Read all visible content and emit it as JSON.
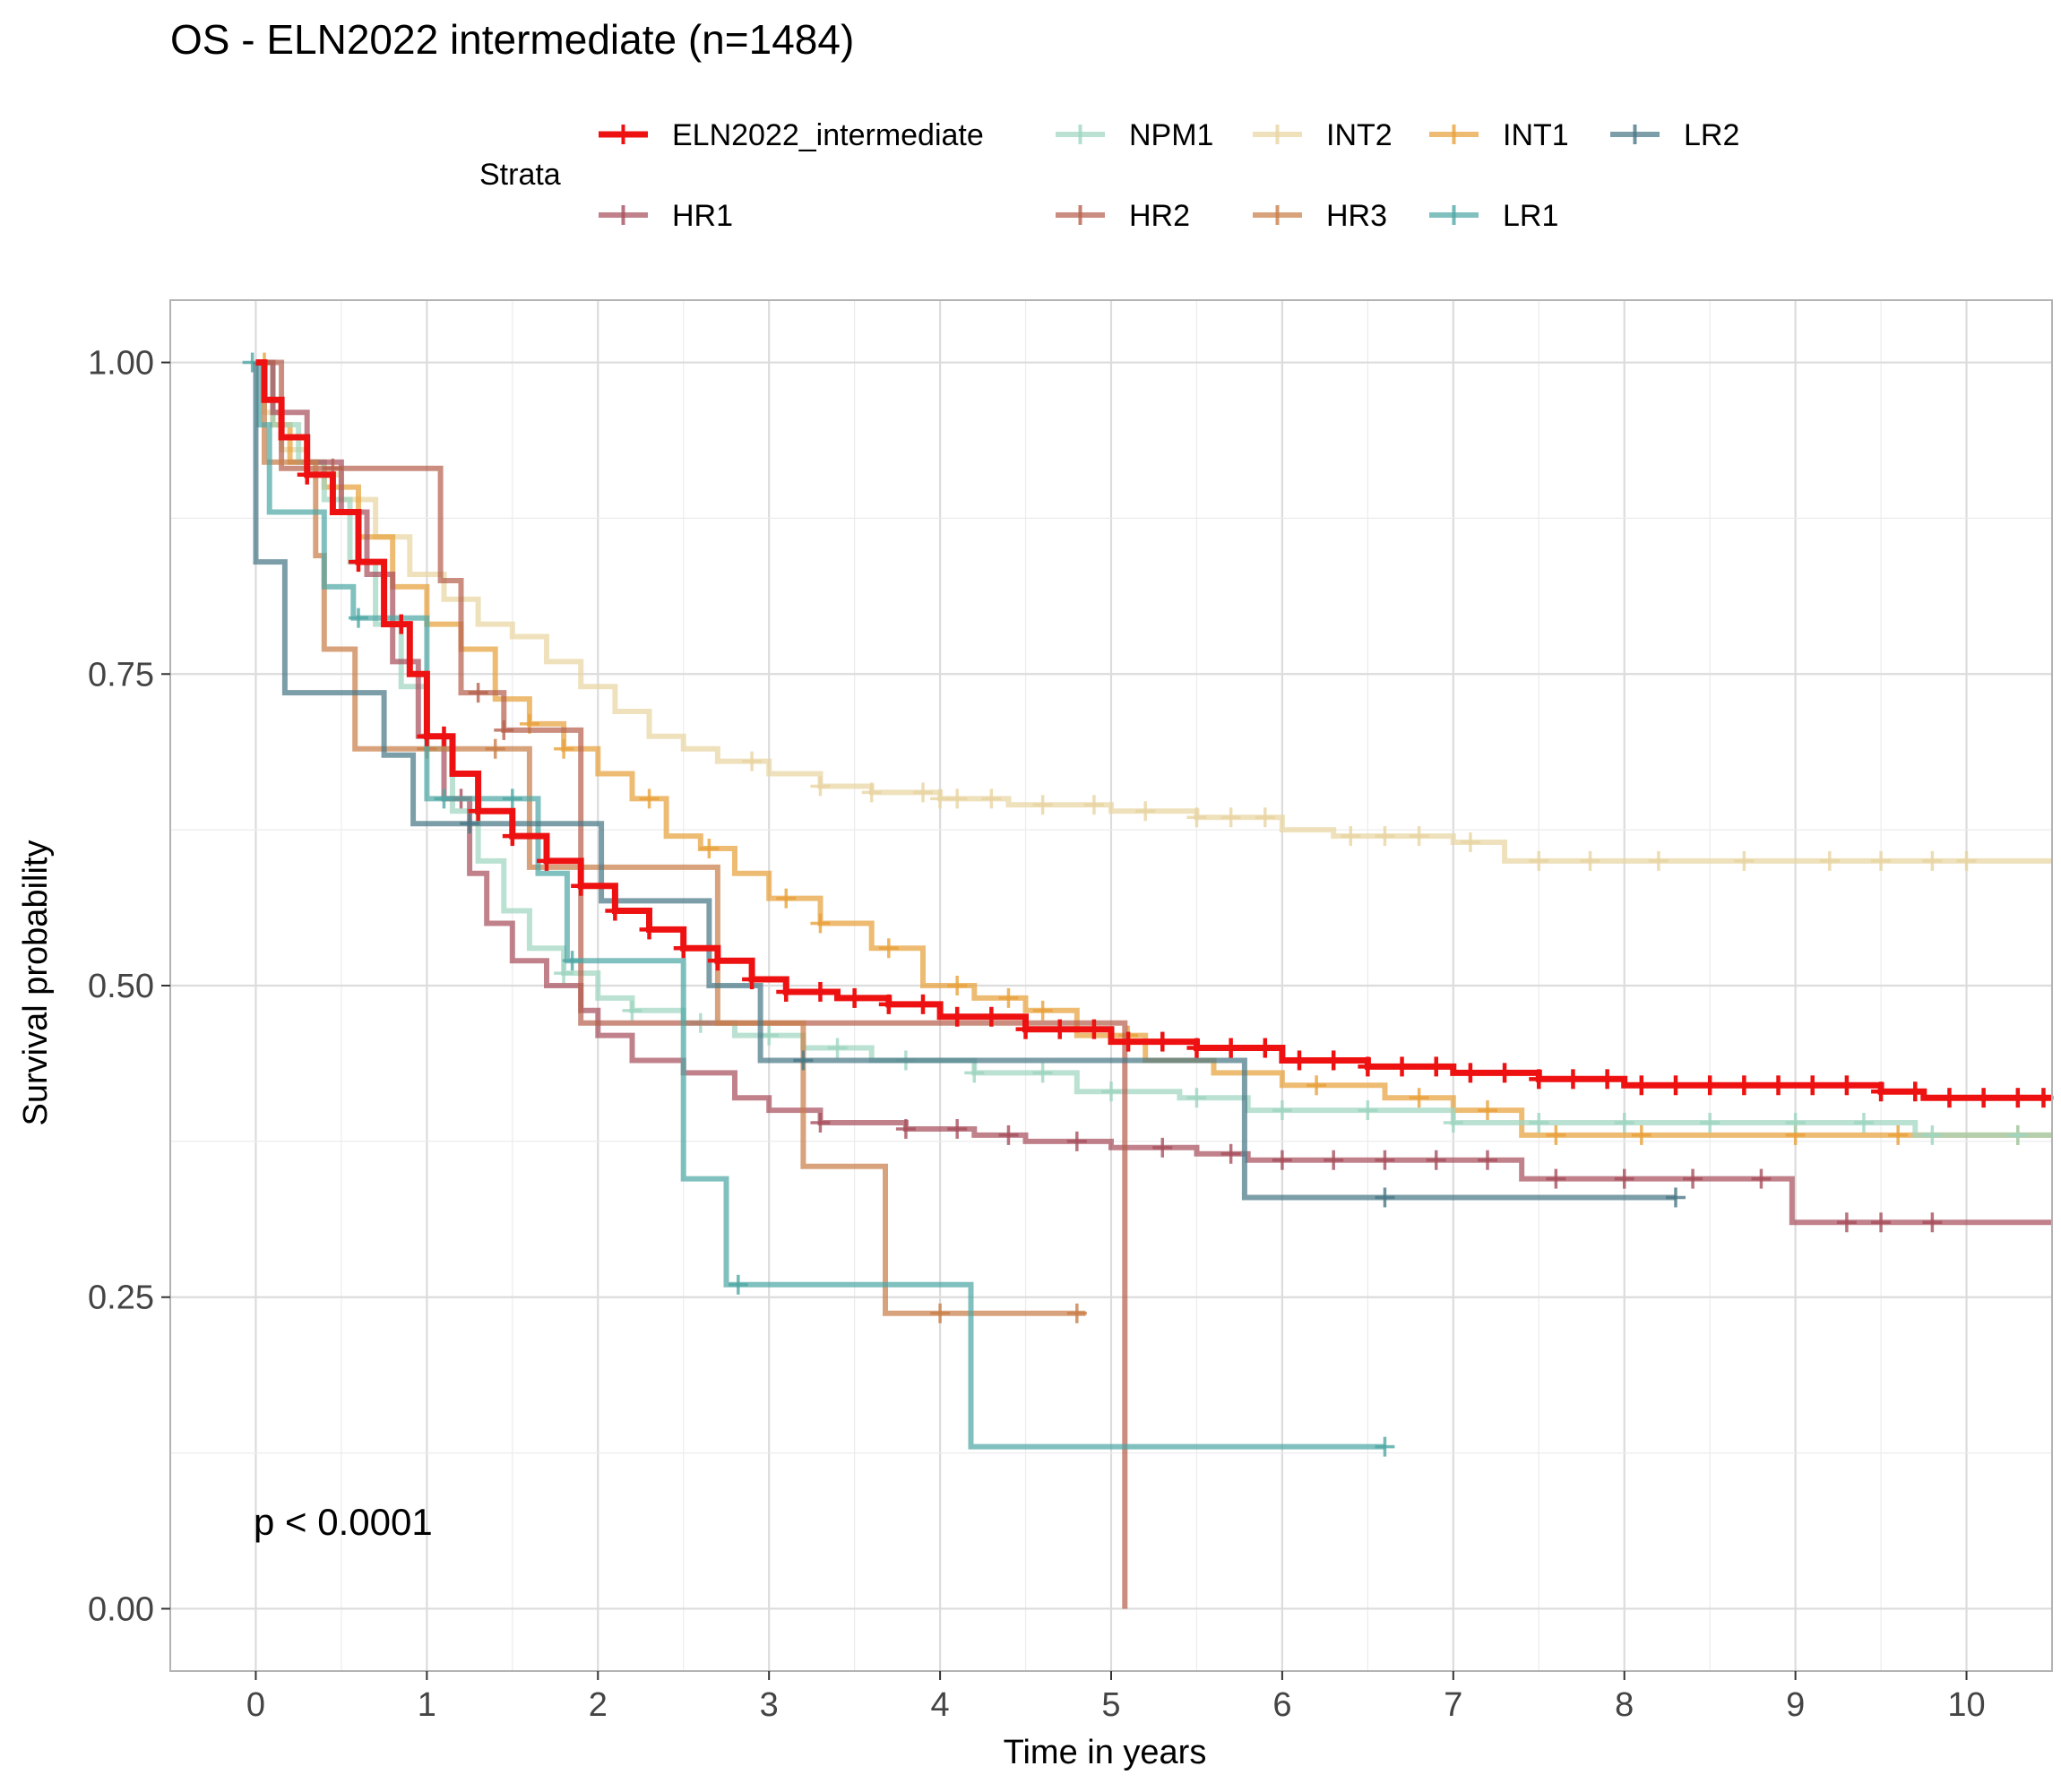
{
  "chart_data": {
    "type": "line",
    "subtype": "kaplan-meier step survival curves with censor marks",
    "title": "OS - ELN2022 intermediate (n=1484)",
    "xlabel": "Time in years",
    "ylabel": "Survival probability",
    "xlim": [
      -0.5,
      10.5
    ],
    "ylim": [
      -0.05,
      1.05
    ],
    "x_ticks": [
      0,
      1,
      2,
      3,
      4,
      5,
      6,
      7,
      8,
      9,
      10
    ],
    "x_tick_labels": [
      "0",
      "1",
      "2",
      "3",
      "4",
      "5",
      "6",
      "7",
      "8",
      "9",
      "10"
    ],
    "y_ticks": [
      0,
      0.25,
      0.5,
      0.75,
      1
    ],
    "y_tick_labels": [
      "0.00",
      "0.25",
      "0.50",
      "0.75",
      "1.00"
    ],
    "grid": true,
    "legend": {
      "title": "Strata",
      "position": "top",
      "order": [
        "ELN2022_intermediate",
        "NPM1",
        "INT2",
        "INT1",
        "LR2",
        "HR1",
        "HR2",
        "HR3",
        "LR1"
      ]
    },
    "annotation": "p < 0.0001",
    "series": [
      {
        "name": "INT2",
        "color": "#E8D5A2",
        "points": [
          [
            0,
            1
          ],
          [
            0.05,
            0.96
          ],
          [
            0.15,
            0.93
          ],
          [
            0.3,
            0.91
          ],
          [
            0.5,
            0.89
          ],
          [
            0.7,
            0.86
          ],
          [
            0.9,
            0.83
          ],
          [
            1.1,
            0.81
          ],
          [
            1.3,
            0.79
          ],
          [
            1.5,
            0.78
          ],
          [
            1.7,
            0.76
          ],
          [
            1.9,
            0.74
          ],
          [
            2.1,
            0.72
          ],
          [
            2.3,
            0.7
          ],
          [
            2.5,
            0.69
          ],
          [
            2.7,
            0.68
          ],
          [
            3.0,
            0.67
          ],
          [
            3.3,
            0.66
          ],
          [
            3.6,
            0.655
          ],
          [
            4.0,
            0.65
          ],
          [
            4.4,
            0.645
          ],
          [
            5.0,
            0.64
          ],
          [
            5.5,
            0.635
          ],
          [
            6.0,
            0.625
          ],
          [
            6.3,
            0.62
          ],
          [
            7.0,
            0.615
          ],
          [
            7.3,
            0.6
          ],
          [
            8.0,
            0.6
          ],
          [
            10.5,
            0.6
          ]
        ],
        "censor": [
          2.9,
          3.3,
          3.6,
          3.9,
          4.0,
          4.1,
          4.3,
          4.6,
          4.9,
          5.2,
          5.5,
          5.7,
          5.9,
          6.4,
          6.6,
          6.8,
          7.1,
          7.5,
          7.8,
          8.2,
          8.7,
          9.2,
          9.5,
          9.8,
          10.0
        ]
      },
      {
        "name": "INT1",
        "color": "#E8A13B",
        "points": [
          [
            0,
            1
          ],
          [
            0.1,
            0.95
          ],
          [
            0.2,
            0.92
          ],
          [
            0.4,
            0.9
          ],
          [
            0.6,
            0.86
          ],
          [
            0.8,
            0.82
          ],
          [
            1.0,
            0.79
          ],
          [
            1.2,
            0.77
          ],
          [
            1.4,
            0.73
          ],
          [
            1.6,
            0.71
          ],
          [
            1.8,
            0.69
          ],
          [
            2.0,
            0.67
          ],
          [
            2.2,
            0.65
          ],
          [
            2.4,
            0.62
          ],
          [
            2.6,
            0.61
          ],
          [
            2.8,
            0.59
          ],
          [
            3.0,
            0.57
          ],
          [
            3.3,
            0.55
          ],
          [
            3.6,
            0.53
          ],
          [
            3.9,
            0.5
          ],
          [
            4.2,
            0.49
          ],
          [
            4.5,
            0.48
          ],
          [
            4.8,
            0.46
          ],
          [
            5.2,
            0.44
          ],
          [
            5.6,
            0.43
          ],
          [
            6.0,
            0.42
          ],
          [
            6.6,
            0.41
          ],
          [
            7.0,
            0.4
          ],
          [
            7.4,
            0.38
          ],
          [
            8.0,
            0.38
          ],
          [
            10.5,
            0.38
          ]
        ],
        "censor": [
          0.05,
          1.6,
          1.8,
          2.3,
          2.65,
          3.1,
          3.3,
          3.7,
          4.1,
          4.4,
          4.6,
          5.1,
          6.2,
          6.8,
          7.2,
          7.6,
          8.1,
          9.0,
          9.6,
          10.3
        ]
      },
      {
        "name": "NPM1",
        "color": "#9FD6C0",
        "points": [
          [
            0,
            1
          ],
          [
            0.1,
            0.95
          ],
          [
            0.25,
            0.92
          ],
          [
            0.4,
            0.89
          ],
          [
            0.55,
            0.84
          ],
          [
            0.7,
            0.79
          ],
          [
            0.85,
            0.74
          ],
          [
            1.0,
            0.69
          ],
          [
            1.15,
            0.64
          ],
          [
            1.3,
            0.6
          ],
          [
            1.45,
            0.56
          ],
          [
            1.6,
            0.53
          ],
          [
            1.8,
            0.51
          ],
          [
            2.0,
            0.49
          ],
          [
            2.2,
            0.48
          ],
          [
            2.5,
            0.47
          ],
          [
            2.8,
            0.46
          ],
          [
            3.2,
            0.45
          ],
          [
            3.6,
            0.44
          ],
          [
            4.2,
            0.43
          ],
          [
            4.8,
            0.415
          ],
          [
            5.4,
            0.41
          ],
          [
            5.8,
            0.4
          ],
          [
            6.5,
            0.4
          ],
          [
            7.0,
            0.39
          ],
          [
            8.0,
            0.39
          ],
          [
            9.0,
            0.39
          ],
          [
            9.7,
            0.38
          ],
          [
            10.5,
            0.38
          ]
        ],
        "censor": [
          1.8,
          2.2,
          2.6,
          3.0,
          3.4,
          3.8,
          4.2,
          4.6,
          5.0,
          5.5,
          6.0,
          6.5,
          7.0,
          7.5,
          8.0,
          8.5,
          9.0,
          9.4,
          9.8,
          10.3
        ]
      },
      {
        "name": "HR1",
        "color": "#A8505E",
        "points": [
          [
            0,
            1
          ],
          [
            0.1,
            0.96
          ],
          [
            0.3,
            0.92
          ],
          [
            0.5,
            0.88
          ],
          [
            0.65,
            0.83
          ],
          [
            0.8,
            0.76
          ],
          [
            0.95,
            0.7
          ],
          [
            1.1,
            0.65
          ],
          [
            1.25,
            0.59
          ],
          [
            1.35,
            0.55
          ],
          [
            1.5,
            0.52
          ],
          [
            1.7,
            0.5
          ],
          [
            1.9,
            0.48
          ],
          [
            2.0,
            0.46
          ],
          [
            2.2,
            0.44
          ],
          [
            2.5,
            0.43
          ],
          [
            2.8,
            0.41
          ],
          [
            3.0,
            0.4
          ],
          [
            3.3,
            0.39
          ],
          [
            3.8,
            0.385
          ],
          [
            4.2,
            0.38
          ],
          [
            4.5,
            0.375
          ],
          [
            5.0,
            0.37
          ],
          [
            5.5,
            0.365
          ],
          [
            5.8,
            0.36
          ],
          [
            6.5,
            0.36
          ],
          [
            7.0,
            0.36
          ],
          [
            7.4,
            0.345
          ],
          [
            8.0,
            0.345
          ],
          [
            8.98,
            0.345
          ],
          [
            8.98,
            0.31
          ],
          [
            10.5,
            0.31
          ]
        ],
        "censor": [
          1.2,
          3.3,
          3.8,
          4.1,
          4.4,
          4.8,
          5.3,
          5.7,
          6.0,
          6.3,
          6.6,
          6.9,
          7.2,
          7.6,
          8.0,
          8.4,
          8.8,
          9.3,
          9.5,
          9.8
        ]
      },
      {
        "name": "HR2",
        "color": "#B5614E",
        "points": [
          [
            0,
            1
          ],
          [
            0.15,
            1
          ],
          [
            0.15,
            0.915
          ],
          [
            1.08,
            0.915
          ],
          [
            1.08,
            0.825
          ],
          [
            1.2,
            0.825
          ],
          [
            1.2,
            0.735
          ],
          [
            1.45,
            0.735
          ],
          [
            1.45,
            0.705
          ],
          [
            1.9,
            0.705
          ],
          [
            1.9,
            0.47
          ],
          [
            5.08,
            0.47
          ],
          [
            5.08,
            0.0
          ]
        ],
        "censor": [
          0.45,
          1.3,
          1.45
        ]
      },
      {
        "name": "HR3",
        "color": "#C9804A",
        "points": [
          [
            0,
            1
          ],
          [
            0.05,
            0.92
          ],
          [
            0.35,
            0.92
          ],
          [
            0.35,
            0.845
          ],
          [
            0.4,
            0.845
          ],
          [
            0.4,
            0.77
          ],
          [
            0.58,
            0.77
          ],
          [
            0.58,
            0.69
          ],
          [
            0.9,
            0.69
          ],
          [
            0.9,
            0.69
          ],
          [
            1.6,
            0.69
          ],
          [
            1.6,
            0.595
          ],
          [
            2.7,
            0.595
          ],
          [
            2.7,
            0.47
          ],
          [
            3.2,
            0.47
          ],
          [
            3.2,
            0.355
          ],
          [
            3.68,
            0.355
          ],
          [
            3.68,
            0.237
          ],
          [
            4.85,
            0.237
          ]
        ],
        "censor": [
          1.0,
          1.4,
          4.0,
          4.8
        ]
      },
      {
        "name": "LR1",
        "color": "#4FA8A5",
        "points": [
          [
            0,
            1
          ],
          [
            0.02,
            0.95
          ],
          [
            0.08,
            0.88
          ],
          [
            0.4,
            0.88
          ],
          [
            0.4,
            0.82
          ],
          [
            0.57,
            0.82
          ],
          [
            0.57,
            0.795
          ],
          [
            0.9,
            0.795
          ],
          [
            1.0,
            0.795
          ],
          [
            1.0,
            0.65
          ],
          [
            1.65,
            0.65
          ],
          [
            1.65,
            0.59
          ],
          [
            1.82,
            0.59
          ],
          [
            1.82,
            0.52
          ],
          [
            2.5,
            0.52
          ],
          [
            2.5,
            0.345
          ],
          [
            2.75,
            0.345
          ],
          [
            2.75,
            0.26
          ],
          [
            4.18,
            0.26
          ],
          [
            4.18,
            0.13
          ],
          [
            6.6,
            0.13
          ]
        ],
        "censor": [
          -0.02,
          0.6,
          1.1,
          1.5,
          1.85,
          2.82,
          6.6
        ]
      },
      {
        "name": "LR2",
        "color": "#4A7886",
        "points": [
          [
            0,
            1
          ],
          [
            0.0,
            0.84
          ],
          [
            0.17,
            0.84
          ],
          [
            0.17,
            0.735
          ],
          [
            0.75,
            0.735
          ],
          [
            0.75,
            0.685
          ],
          [
            0.92,
            0.685
          ],
          [
            0.92,
            0.63
          ],
          [
            2.02,
            0.63
          ],
          [
            2.02,
            0.568
          ],
          [
            2.65,
            0.568
          ],
          [
            2.65,
            0.5
          ],
          [
            2.95,
            0.5
          ],
          [
            2.95,
            0.44
          ],
          [
            5.78,
            0.44
          ],
          [
            5.78,
            0.33
          ],
          [
            8.3,
            0.33
          ]
        ],
        "censor": [
          1.25,
          3.2,
          6.6,
          8.3
        ]
      },
      {
        "name": "ELN2022_intermediate",
        "color": "#EE1111",
        "points": [
          [
            0,
            1
          ],
          [
            0.05,
            0.97
          ],
          [
            0.15,
            0.94
          ],
          [
            0.3,
            0.91
          ],
          [
            0.45,
            0.88
          ],
          [
            0.6,
            0.84
          ],
          [
            0.75,
            0.79
          ],
          [
            0.9,
            0.75
          ],
          [
            1.0,
            0.7
          ],
          [
            1.15,
            0.67
          ],
          [
            1.3,
            0.64
          ],
          [
            1.5,
            0.62
          ],
          [
            1.7,
            0.6
          ],
          [
            1.9,
            0.58
          ],
          [
            2.1,
            0.56
          ],
          [
            2.3,
            0.545
          ],
          [
            2.5,
            0.53
          ],
          [
            2.7,
            0.52
          ],
          [
            2.9,
            0.505
          ],
          [
            3.1,
            0.495
          ],
          [
            3.4,
            0.49
          ],
          [
            3.7,
            0.485
          ],
          [
            4.0,
            0.475
          ],
          [
            4.5,
            0.465
          ],
          [
            5.0,
            0.455
          ],
          [
            5.5,
            0.45
          ],
          [
            6.0,
            0.44
          ],
          [
            6.5,
            0.435
          ],
          [
            7.0,
            0.43
          ],
          [
            7.5,
            0.425
          ],
          [
            8.0,
            0.42
          ],
          [
            8.5,
            0.42
          ],
          [
            9.0,
            0.42
          ],
          [
            9.5,
            0.415
          ],
          [
            9.75,
            0.41
          ],
          [
            10.5,
            0.41
          ]
        ],
        "censor": [
          0.3,
          0.6,
          0.85,
          1.0,
          1.1,
          1.3,
          1.5,
          1.7,
          1.9,
          2.1,
          2.3,
          2.5,
          2.7,
          2.9,
          3.1,
          3.3,
          3.5,
          3.7,
          3.9,
          4.1,
          4.3,
          4.5,
          4.7,
          4.9,
          5.1,
          5.3,
          5.5,
          5.7,
          5.9,
          6.1,
          6.3,
          6.5,
          6.7,
          6.9,
          7.1,
          7.3,
          7.5,
          7.7,
          7.9,
          8.1,
          8.3,
          8.5,
          8.7,
          8.9,
          9.1,
          9.3,
          9.5,
          9.7,
          9.9,
          10.1,
          10.3,
          10.45
        ]
      }
    ]
  }
}
